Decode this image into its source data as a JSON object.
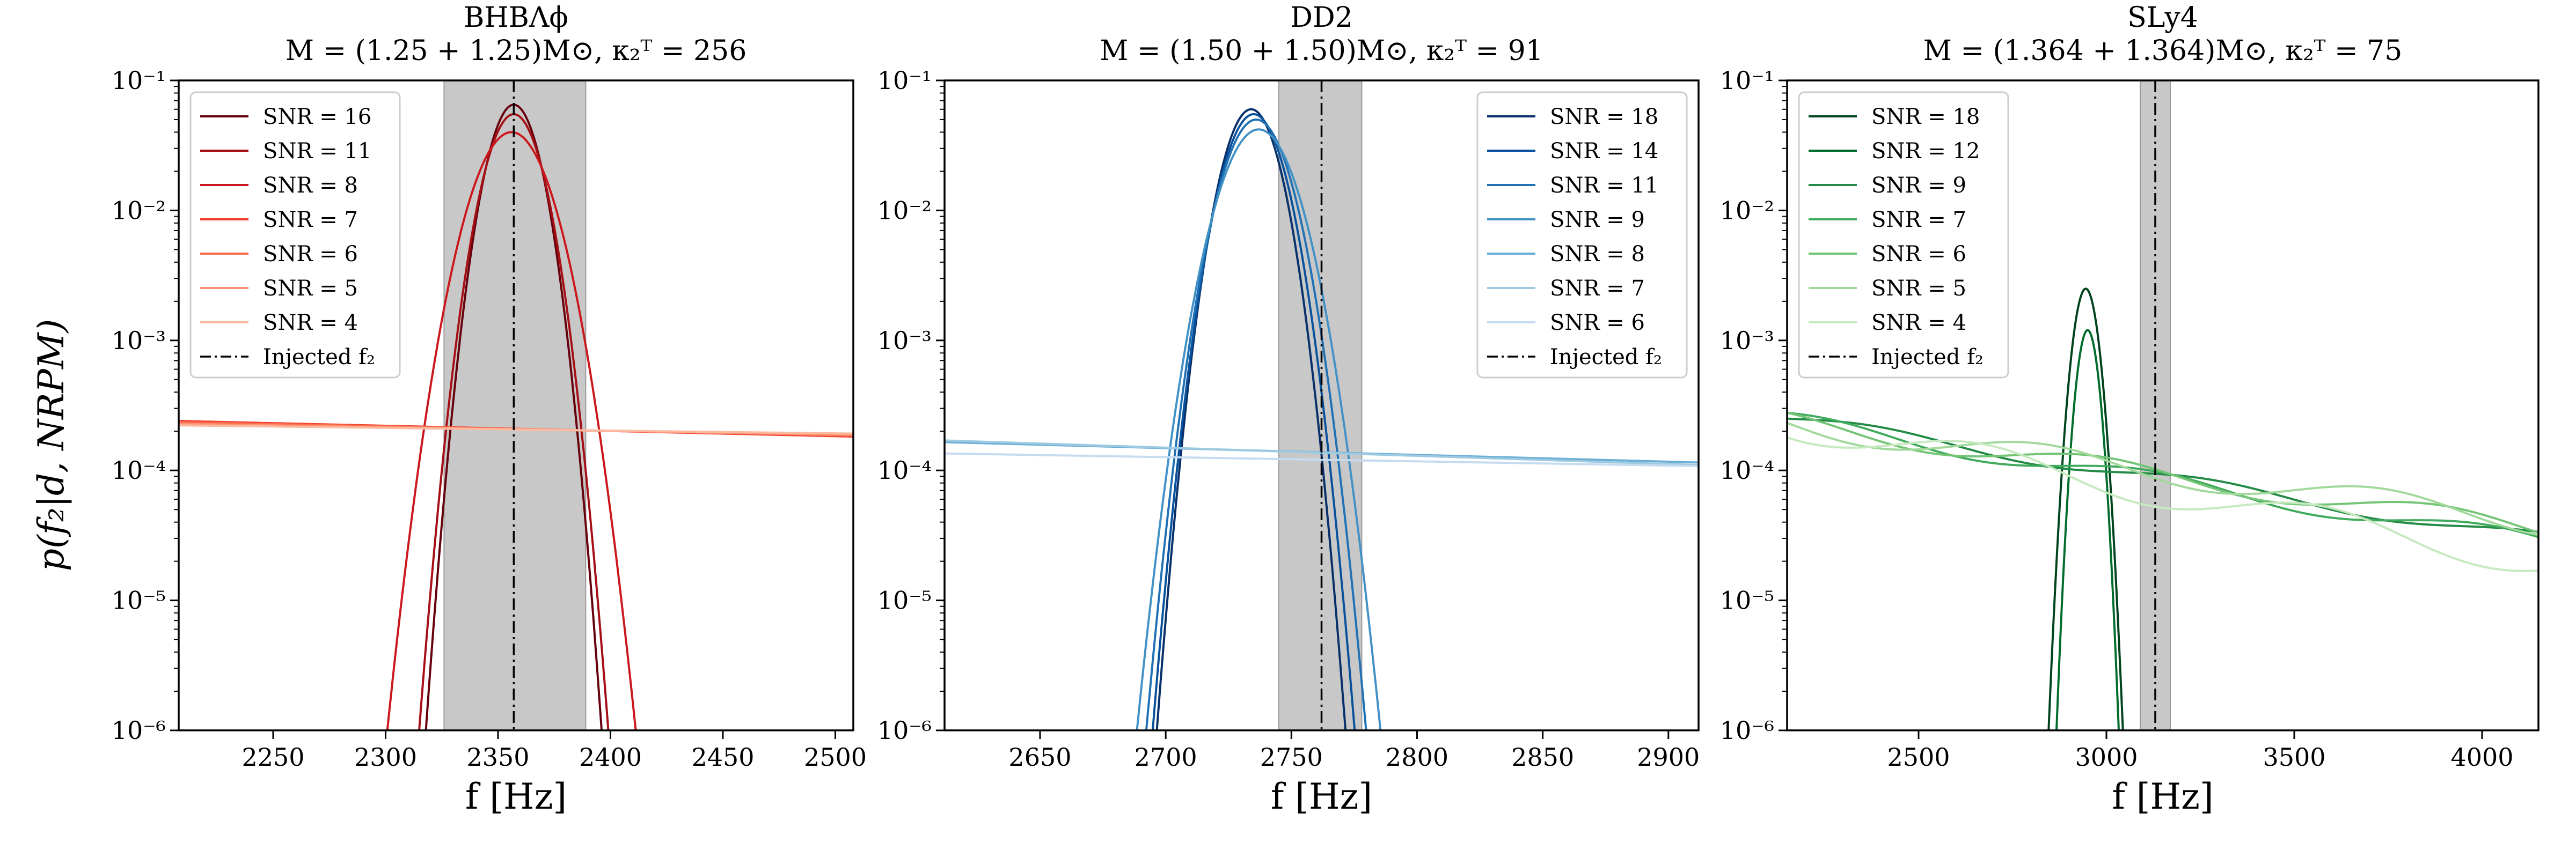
{
  "figure": {
    "ylabel": "p(f₂|d, NRPM)",
    "injected_label": "Injected f₂"
  },
  "chart_data": [
    {
      "type": "line",
      "yscale": "log",
      "title_line1": "BHBΛϕ",
      "title_line2": "M = (1.25 + 1.25)M⊙, κ₂ᵀ = 256",
      "xlabel": "f [Hz]",
      "xlim": [
        2208,
        2508
      ],
      "ylim": [
        1e-06,
        0.1
      ],
      "xticks": [
        2250,
        2300,
        2350,
        2400,
        2450,
        2500
      ],
      "yticks": [
        1e-06,
        1e-05,
        0.0001,
        0.001,
        0.01,
        0.1
      ],
      "ytick_labels": [
        "10⁻⁶",
        "10⁻⁵",
        "10⁻⁴",
        "10⁻³",
        "10⁻²",
        "10⁻¹"
      ],
      "injected_f2": 2357,
      "band": [
        2326,
        2389
      ],
      "legend_position": "top-left",
      "series": [
        {
          "name": "SNR = 16",
          "color": "#67000d",
          "kind": "peak",
          "peak_f": 2357,
          "peak_p": 0.065,
          "width_sigma": 8.3
        },
        {
          "name": "SNR = 11",
          "color": "#a50f15",
          "kind": "peak",
          "peak_f": 2357,
          "peak_p": 0.055,
          "width_sigma": 9.0
        },
        {
          "name": "SNR = 8",
          "color": "#cb181d",
          "kind": "peak",
          "peak_f": 2356,
          "peak_p": 0.04,
          "width_sigma": 12.0
        },
        {
          "name": "SNR = 7",
          "color": "#ef3b2c",
          "kind": "flat",
          "y_start": 0.00024,
          "y_end": 0.000182
        },
        {
          "name": "SNR = 6",
          "color": "#fb6a4a",
          "kind": "flat",
          "y_start": 0.000235,
          "y_end": 0.000185
        },
        {
          "name": "SNR = 5",
          "color": "#fc9272",
          "kind": "flat",
          "y_start": 0.000228,
          "y_end": 0.000188
        },
        {
          "name": "SNR = 4",
          "color": "#fcbba1",
          "kind": "flat",
          "y_start": 0.000222,
          "y_end": 0.000192
        }
      ]
    },
    {
      "type": "line",
      "yscale": "log",
      "title_line1": "DD2",
      "title_line2": "M = (1.50 + 1.50)M⊙, κ₂ᵀ = 91",
      "xlabel": "f [Hz]",
      "xlim": [
        2612,
        2912
      ],
      "ylim": [
        1e-06,
        0.1
      ],
      "xticks": [
        2650,
        2700,
        2750,
        2800,
        2850,
        2900
      ],
      "yticks": [
        1e-06,
        1e-05,
        0.0001,
        0.001,
        0.01,
        0.1
      ],
      "ytick_labels": [
        "10⁻⁶",
        "10⁻⁵",
        "10⁻⁴",
        "10⁻³",
        "10⁻²",
        "10⁻¹"
      ],
      "injected_f2": 2762,
      "band": [
        2745,
        2778
      ],
      "legend_position": "top-right",
      "series": [
        {
          "name": "SNR = 18",
          "color": "#08306b",
          "kind": "peak",
          "peak_f": 2734,
          "peak_p": 0.06,
          "width_sigma": 8.0
        },
        {
          "name": "SNR = 14",
          "color": "#08519c",
          "kind": "peak",
          "peak_f": 2735,
          "peak_p": 0.055,
          "width_sigma": 8.6
        },
        {
          "name": "SNR = 11",
          "color": "#2171b5",
          "kind": "peak",
          "peak_f": 2736,
          "peak_p": 0.05,
          "width_sigma": 9.4
        },
        {
          "name": "SNR = 9",
          "color": "#4292c6",
          "kind": "peak",
          "peak_f": 2737,
          "peak_p": 0.042,
          "width_sigma": 10.5
        },
        {
          "name": "SNR = 8",
          "color": "#6baed6",
          "kind": "flat",
          "y_start": 0.000165,
          "y_end": 0.000115
        },
        {
          "name": "SNR = 7",
          "color": "#9ecae1",
          "kind": "flat",
          "y_start": 0.00017,
          "y_end": 0.00011
        },
        {
          "name": "SNR = 6",
          "color": "#c6dbef",
          "kind": "flat",
          "y_start": 0.000135,
          "y_end": 0.000108
        }
      ]
    },
    {
      "type": "line",
      "yscale": "log",
      "title_line1": "SLy4",
      "title_line2": "M = (1.364 + 1.364)M⊙, κ₂ᵀ = 75",
      "xlabel": "f [Hz]",
      "xlim": [
        2150,
        4150
      ],
      "ylim": [
        1e-06,
        0.1
      ],
      "xticks": [
        2500,
        3000,
        3500,
        4000
      ],
      "yticks": [
        1e-06,
        1e-05,
        0.0001,
        0.001,
        0.01,
        0.1
      ],
      "ytick_labels": [
        "10⁻⁶",
        "10⁻⁵",
        "10⁻⁴",
        "10⁻³",
        "10⁻²",
        "10⁻¹"
      ],
      "injected_f2": 3130,
      "band": [
        3090,
        3170
      ],
      "legend_position": "top-left",
      "series": [
        {
          "name": "SNR = 18",
          "color": "#00441b",
          "kind": "peak",
          "peak_f": 2945,
          "peak_p": 0.0025,
          "width_sigma": 25.0
        },
        {
          "name": "SNR = 12",
          "color": "#006d2c",
          "kind": "peak",
          "peak_f": 2950,
          "peak_p": 0.0012,
          "width_sigma": 22.0
        },
        {
          "name": "SNR = 9",
          "color": "#238b45",
          "kind": "wavy",
          "y_start": 0.00025,
          "y_end": 3e-05,
          "amp": 0.05,
          "phase": 0.0
        },
        {
          "name": "SNR = 7",
          "color": "#41ab5d",
          "kind": "wavy",
          "y_start": 0.00024,
          "y_end": 2.8e-05,
          "amp": 0.07,
          "phase": 1.1
        },
        {
          "name": "SNR = 6",
          "color": "#74c476",
          "kind": "wavy",
          "y_start": 0.000235,
          "y_end": 3.5e-05,
          "amp": 0.08,
          "phase": 2.0
        },
        {
          "name": "SNR = 5",
          "color": "#a1d99b",
          "kind": "wavy",
          "y_start": 0.00023,
          "y_end": 4e-05,
          "amp": 0.1,
          "phase": 3.1
        },
        {
          "name": "SNR = 4",
          "color": "#c7e9c0",
          "kind": "wavy",
          "y_start": 0.000228,
          "y_end": 2e-05,
          "amp": 0.12,
          "phase": 4.2
        }
      ]
    }
  ]
}
